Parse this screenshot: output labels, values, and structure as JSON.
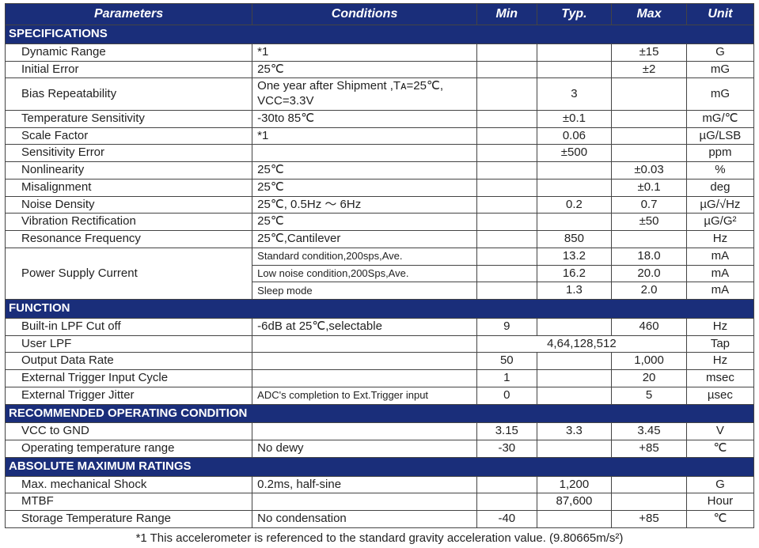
{
  "headers": {
    "parameters": "Parameters",
    "conditions": "Conditions",
    "min": "Min",
    "typ": "Typ.",
    "max": "Max",
    "unit": "Unit"
  },
  "sections": {
    "specifications": "SPECIFICATIONS",
    "function": "FUNCTION",
    "recommended": "RECOMMENDED OPERATING CONDITION",
    "absolute": "ABSOLUTE MAXIMUM RATINGS"
  },
  "rows": {
    "dynamic_range": {
      "param": "Dynamic Range",
      "cond": "*1",
      "min": "",
      "typ": "",
      "max": "±15",
      "unit": "G"
    },
    "initial_error": {
      "param": "Initial Error",
      "cond": "25℃",
      "min": "",
      "typ": "",
      "max": "±2",
      "unit": "mG"
    },
    "bias_repeat": {
      "param": "Bias Repeatability",
      "cond": "One year after Shipment ,Tᴀ=25℃, VCC=3.3V",
      "min": "",
      "typ": "3",
      "max": "",
      "unit": "mG"
    },
    "temp_sens": {
      "param": "Temperature Sensitivity",
      "cond": "-30to 85℃",
      "min": "",
      "typ": "±0.1",
      "max": "",
      "unit": "mG/℃"
    },
    "scale_factor": {
      "param": "Scale Factor",
      "cond": "*1",
      "min": "",
      "typ": "0.06",
      "max": "",
      "unit": "µG/LSB"
    },
    "sens_error": {
      "param": "Sensitivity Error",
      "cond": "",
      "min": "",
      "typ": "±500",
      "max": "",
      "unit": "ppm"
    },
    "nonlinearity": {
      "param": "Nonlinearity",
      "cond": "25℃",
      "min": "",
      "typ": "",
      "max": "±0.03",
      "unit": "%"
    },
    "misalignment": {
      "param": "Misalignment",
      "cond": "25℃",
      "min": "",
      "typ": "",
      "max": "±0.1",
      "unit": "deg"
    },
    "noise_density": {
      "param": "Noise Density",
      "cond": "25℃, 0.5Hz ～ 6Hz",
      "min": "",
      "typ": "0.2",
      "max": "0.7",
      "unit": "µG/√Hz"
    },
    "vib_rect": {
      "param": "Vibration Rectification",
      "cond": "25℃",
      "min": "",
      "typ": "",
      "max": "±50",
      "unit": "µG/G²"
    },
    "resonance": {
      "param": "Resonance Frequency",
      "cond": "25℃,Cantilever",
      "min": "",
      "typ": "850",
      "max": "",
      "unit": "Hz"
    },
    "power_supply": {
      "param": "Power Supply Current"
    },
    "psc_standard": {
      "cond": "Standard condition,200sps,Ave.",
      "min": "",
      "typ": "13.2",
      "max": "18.0",
      "unit": "mA"
    },
    "psc_lownoise": {
      "cond": "Low noise condition,200Sps,Ave.",
      "min": "",
      "typ": "16.2",
      "max": "20.0",
      "unit": "mA"
    },
    "psc_sleep": {
      "cond": "Sleep mode",
      "min": "",
      "typ": "1.3",
      "max": "2.0",
      "unit": "mA"
    },
    "lpf_cutoff": {
      "param": "Built-in LPF Cut off",
      "cond": "-6dB at 25℃,selectable",
      "min": "9",
      "typ": "",
      "max": "460",
      "unit": "Hz"
    },
    "user_lpf": {
      "param": "User LPF",
      "cond": "",
      "merged": "4,64,128,512",
      "unit": "Tap"
    },
    "output_rate": {
      "param": "Output Data Rate",
      "cond": "",
      "min": "50",
      "typ": "",
      "max": "1,000",
      "unit": "Hz"
    },
    "trig_cycle": {
      "param": "External Trigger Input Cycle",
      "cond": "",
      "min": "1",
      "typ": "",
      "max": "20",
      "unit": "msec"
    },
    "trig_jitter": {
      "param": "External Trigger Jitter",
      "cond": "ADC's completion to Ext.Trigger input",
      "min": "0",
      "typ": "",
      "max": "5",
      "unit": "µsec"
    },
    "vcc_gnd": {
      "param": "VCC to GND",
      "cond": "",
      "min": "3.15",
      "typ": "3.3",
      "max": "3.45",
      "unit": "V"
    },
    "op_temp": {
      "param": "Operating temperature range",
      "cond": "No dewy",
      "min": "-30",
      "typ": "",
      "max": "+85",
      "unit": "℃"
    },
    "max_shock": {
      "param": "Max. mechanical Shock",
      "cond": "0.2ms, half-sine",
      "min": "",
      "typ": "1,200",
      "max": "",
      "unit": "G"
    },
    "mtbf": {
      "param": "MTBF",
      "cond": "",
      "min": "",
      "typ": "87,600",
      "max": "",
      "unit": "Hour"
    },
    "storage_temp": {
      "param": "Storage Temperature Range",
      "cond": "No condensation",
      "min": "-40",
      "typ": "",
      "max": "+85",
      "unit": "℃"
    }
  },
  "footnote": "*1 This accelerometer is referenced to the standard gravity acceleration value. (9.80665m/s²)"
}
